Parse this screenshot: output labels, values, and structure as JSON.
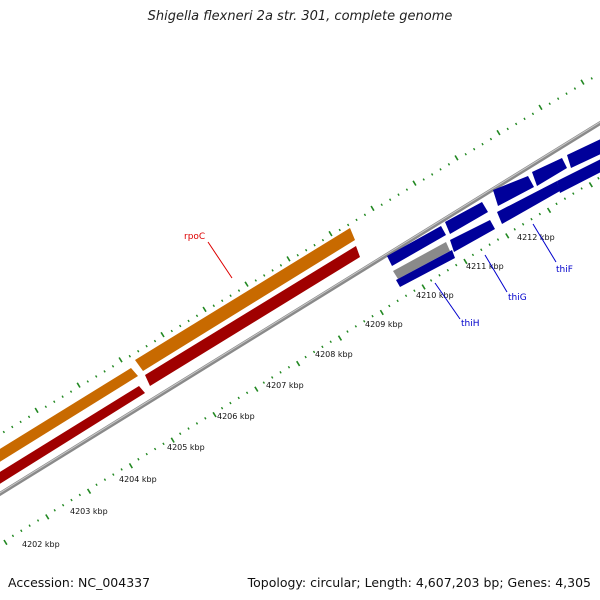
{
  "title": "Shigella flexneri 2a str. 301, complete genome",
  "footer": {
    "accession": "Accession: NC_004337",
    "topology": "Topology: circular; Length: 4,607,203 bp; Genes: 4,305"
  },
  "colors": {
    "forward_gene": "#ff9900",
    "reverse_gene": "#ff0000",
    "thi_genes": "#0000ff",
    "thi_highlight": "#c8c8c8",
    "backbone": "#888888",
    "tick_marks": "#228822",
    "rpoC_label": "#dd0000",
    "thi_label": "#0000cc"
  },
  "scale_labels": [
    "4202 kbp",
    "4203 kbp",
    "4204 kbp",
    "4205 kbp",
    "4206 kbp",
    "4207 kbp",
    "4208 kbp",
    "4209 kbp",
    "4210 kbp",
    "4211 kbp",
    "4212 kbp"
  ],
  "genes": [
    {
      "name": "rpoC",
      "color": "#dd0000"
    },
    {
      "name": "thiH",
      "color": "#0000cc"
    },
    {
      "name": "thiG",
      "color": "#0000cc"
    },
    {
      "name": "thiF",
      "color": "#0000cc"
    }
  ]
}
